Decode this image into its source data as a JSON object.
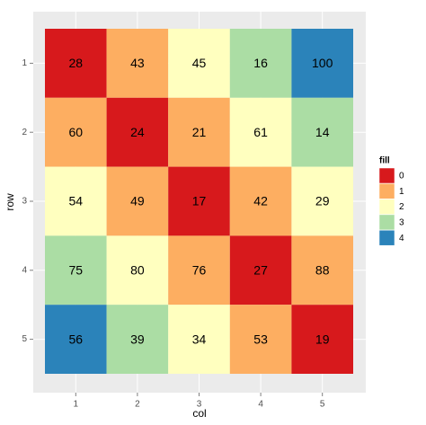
{
  "chart_data": {
    "type": "heatmap",
    "x_label": "col",
    "y_label": "row",
    "x_categories": [
      1,
      2,
      3,
      4,
      5
    ],
    "y_categories": [
      1,
      2,
      3,
      4,
      5
    ],
    "values": [
      [
        28,
        43,
        45,
        16,
        100
      ],
      [
        60,
        24,
        21,
        61,
        14
      ],
      [
        54,
        49,
        17,
        42,
        29
      ],
      [
        75,
        80,
        76,
        27,
        88
      ],
      [
        56,
        39,
        34,
        53,
        19
      ]
    ],
    "fill": [
      [
        0,
        1,
        2,
        3,
        4
      ],
      [
        1,
        0,
        1,
        2,
        3
      ],
      [
        2,
        1,
        0,
        1,
        2
      ],
      [
        3,
        2,
        1,
        0,
        1
      ],
      [
        4,
        3,
        2,
        1,
        0
      ]
    ],
    "legend_title": "fill",
    "fill_levels": [
      0,
      1,
      2,
      3,
      4
    ],
    "fill_colors": [
      "#d7191c",
      "#fdae61",
      "#ffffbf",
      "#abdda4",
      "#2b83ba"
    ],
    "grid": true
  }
}
